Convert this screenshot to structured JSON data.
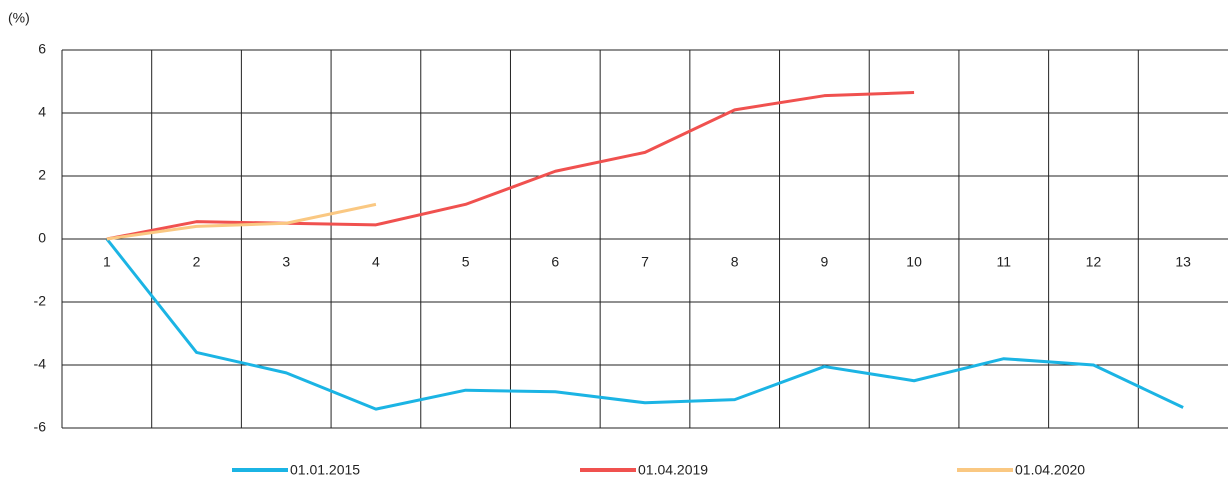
{
  "chart_data": {
    "type": "line",
    "y_unit": "(%)",
    "categories": [
      "1",
      "2",
      "3",
      "4",
      "5",
      "6",
      "7",
      "8",
      "9",
      "10",
      "11",
      "12",
      "13"
    ],
    "series": [
      {
        "name": "01.01.2015",
        "color": "#1bb4e4",
        "values": [
          0,
          -3.6,
          -4.25,
          -5.4,
          -4.8,
          -4.85,
          -5.2,
          -5.1,
          -4.05,
          -4.5,
          -3.8,
          -4.0,
          -5.35
        ]
      },
      {
        "name": "01.04.2019",
        "color": "#f0514f",
        "values": [
          0,
          0.55,
          0.5,
          0.45,
          1.1,
          2.15,
          2.75,
          4.1,
          4.55,
          4.65,
          null,
          null,
          null
        ]
      },
      {
        "name": "01.04.2020",
        "color": "#fac882",
        "values": [
          0,
          0.4,
          0.5,
          1.1,
          null,
          null,
          null,
          null,
          null,
          null,
          null,
          null,
          null
        ]
      }
    ],
    "ylim": [
      -6,
      6
    ],
    "yticks": [
      -6,
      -4,
      -2,
      0,
      2,
      4,
      6
    ],
    "grid": true
  }
}
